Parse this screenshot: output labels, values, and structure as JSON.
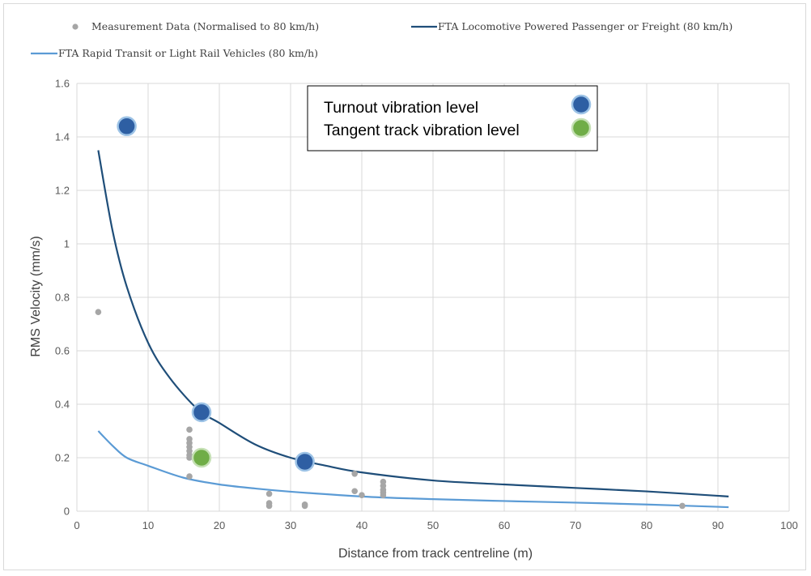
{
  "chart_data": {
    "type": "scatter",
    "xlabel": "Distance from track centreline (m)",
    "ylabel": "RMS Velocity (mm/s)",
    "xlim": [
      0,
      100
    ],
    "ylim": [
      0,
      1.6
    ],
    "xticks": [
      "0",
      "10",
      "20",
      "30",
      "40",
      "50",
      "60",
      "70",
      "80",
      "90",
      "100"
    ],
    "yticks": [
      "0",
      "0.2",
      "0.4",
      "0.6",
      "0.8",
      "1",
      "1.2",
      "1.4",
      "1.6"
    ],
    "grid": true,
    "legend_position": "top",
    "legend": {
      "measurement": "Measurement Data (Normalised to 80 km/h)",
      "fta_loco": "FTA Locomotive Powered Passenger or Freight (80 km/h)",
      "fta_rapid": "FTA Rapid Transit or Light Rail Vehicles (80 km/h)"
    },
    "inset_legend": {
      "turnout": "Turnout vibration level",
      "tangent": "Tangent track vibration level"
    },
    "colors": {
      "measurement": "#a6a6a6",
      "fta_loco": "#1f4e79",
      "fta_rapid": "#5b9bd5",
      "turnout_fill": "#2e5fa3",
      "turnout_ring": "#9dc3e6",
      "tangent_fill": "#70ad47",
      "tangent_ring": "#c5e0b4"
    },
    "series": [
      {
        "name": "FTA Locomotive Powered Passenger or Freight (80 km/h)",
        "type": "line",
        "x": [
          3,
          5,
          7,
          10,
          13,
          17,
          20,
          25,
          30,
          35,
          40,
          50,
          60,
          70,
          80,
          91.5
        ],
        "y": [
          1.35,
          1.05,
          0.84,
          0.63,
          0.5,
          0.38,
          0.33,
          0.25,
          0.2,
          0.17,
          0.145,
          0.115,
          0.1,
          0.087,
          0.074,
          0.055
        ]
      },
      {
        "name": "FTA Rapid Transit or Light Rail Vehicles (80 km/h)",
        "type": "line",
        "x": [
          3,
          5,
          7,
          10,
          15,
          20,
          25,
          30,
          40,
          50,
          60,
          70,
          80,
          91.5
        ],
        "y": [
          0.3,
          0.245,
          0.2,
          0.17,
          0.125,
          0.1,
          0.085,
          0.073,
          0.055,
          0.045,
          0.038,
          0.032,
          0.025,
          0.015
        ]
      },
      {
        "name": "Measurement Data (Normalised to 80 km/h)",
        "type": "scatter",
        "x": [
          3,
          15.8,
          15.8,
          15.8,
          15.8,
          15.8,
          15.8,
          15.8,
          15.8,
          27,
          27,
          27,
          32,
          32,
          39,
          39,
          40,
          43,
          43,
          43,
          43,
          43,
          85
        ],
        "y": [
          0.745,
          0.305,
          0.27,
          0.255,
          0.24,
          0.225,
          0.21,
          0.2,
          0.13,
          0.065,
          0.03,
          0.02,
          0.025,
          0.02,
          0.14,
          0.075,
          0.06,
          0.11,
          0.095,
          0.08,
          0.07,
          0.06,
          0.02
        ]
      },
      {
        "name": "Turnout vibration level",
        "type": "marker",
        "x": [
          7,
          17.5,
          32
        ],
        "y": [
          1.44,
          0.37,
          0.185
        ]
      },
      {
        "name": "Tangent track vibration level",
        "type": "marker",
        "x": [
          17.5
        ],
        "y": [
          0.2
        ]
      }
    ]
  }
}
